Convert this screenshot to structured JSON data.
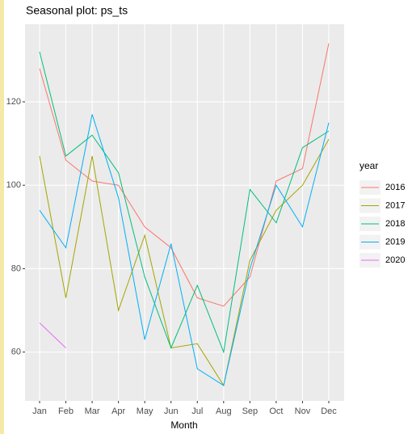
{
  "chart_data": {
    "type": "line",
    "title": "Seasonal plot: ps_ts",
    "x_label": "Month",
    "legend_title": "year",
    "categories": [
      "Jan",
      "Feb",
      "Mar",
      "Apr",
      "May",
      "Jun",
      "Jul",
      "Aug",
      "Sep",
      "Oct",
      "Nov",
      "Dec"
    ],
    "series": [
      {
        "name": "2016",
        "color": "#F8766D",
        "values": [
          128,
          106,
          101,
          100,
          90,
          85,
          73,
          71,
          78,
          101,
          104,
          134
        ]
      },
      {
        "name": "2017",
        "color": "#A3A500",
        "values": [
          107,
          73,
          107,
          70,
          88,
          61,
          62,
          52,
          82,
          94,
          100,
          111
        ]
      },
      {
        "name": "2018",
        "color": "#00BF7D",
        "values": [
          132,
          107,
          112,
          103,
          78,
          61,
          76,
          60,
          99,
          91,
          109,
          113
        ]
      },
      {
        "name": "2019",
        "color": "#00B0F6",
        "values": [
          94,
          85,
          117,
          97,
          63,
          86,
          56,
          52,
          80,
          100,
          90,
          115
        ]
      },
      {
        "name": "2020",
        "color": "#E76BF3",
        "values": [
          67,
          61,
          null,
          null,
          null,
          null,
          null,
          null,
          null,
          null,
          null,
          null
        ]
      }
    ],
    "ylim": [
      48.3,
      138.6
    ],
    "yticks": [
      60,
      80,
      100,
      120
    ],
    "grid": true,
    "legend": "right"
  }
}
